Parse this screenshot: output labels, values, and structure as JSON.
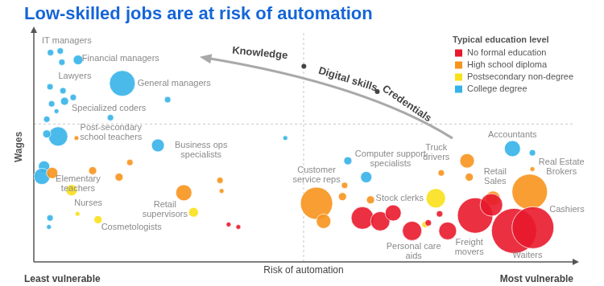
{
  "chart_data": {
    "type": "bubble",
    "title": "Low-skilled jobs are at risk of automation",
    "x_label": "Risk of automation",
    "y_label": "Wages",
    "x_left_label": "Least vulnerable",
    "x_right_label": "Most vulnerable",
    "legend_title": "Typical education level",
    "legend": "top-right",
    "grid": true,
    "tick_labels": false,
    "xlim": [
      0,
      100
    ],
    "ylim": [
      0,
      100
    ],
    "xticks": [
      50
    ],
    "yticks": [
      60
    ],
    "series": [
      {
        "name": "No formal education",
        "color": "#e8192c",
        "x": [
          36.1,
          37.9,
          60.9,
          64.2,
          66.6,
          70.1,
          73.1,
          75.2,
          76.7,
          81.8,
          84.8,
          89.0,
          92.5
        ],
        "y": [
          16.3,
          15.2,
          19.1,
          17.7,
          21.3,
          13.5,
          17.0,
          20.9,
          13.5,
          20.2,
          24.8,
          13.5,
          14.9
        ],
        "sizes": [
          3,
          3,
          14,
          12,
          10,
          12,
          4,
          4,
          11,
          22,
          14,
          28,
          26
        ]
      },
      {
        "name": "High school diploma",
        "color": "#f7941d",
        "x": [
          7.9,
          3.4,
          10.9,
          15.8,
          17.8,
          27.8,
          34.5,
          34.8,
          52.4,
          53.7,
          57.2,
          57.6,
          62.4,
          75.5,
          80.3,
          80.7,
          85.1,
          91.9,
          92.4
        ],
        "y": [
          53.9,
          38.7,
          39.7,
          36.9,
          43.3,
          30.1,
          35.5,
          30.9,
          25.5,
          17.7,
          28.4,
          33.3,
          27.0,
          38.7,
          44.0,
          36.9,
          27.7,
          30.5,
          40.4
        ],
        "sizes": [
          3,
          7,
          5,
          5,
          4,
          10,
          4,
          3,
          20,
          9,
          5,
          4,
          5,
          4,
          9,
          5,
          9,
          22,
          3
        ]
      },
      {
        "name": "Postsecondary non-degree",
        "color": "#f9e01b",
        "x": [
          7.0,
          8.1,
          11.9,
          29.6,
          74.5,
          72.5
        ],
        "y": [
          31.2,
          20.9,
          18.4,
          21.6,
          27.7,
          16.3
        ],
        "sizes": [
          7,
          3,
          5,
          6,
          12,
          4
        ]
      },
      {
        "name": "College degree",
        "color": "#35b3e8",
        "x": [
          3.1,
          4.9,
          5.2,
          8.2,
          3.0,
          16.4,
          5.4,
          3.3,
          5.7,
          4.2,
          7.3,
          24.8,
          2.4,
          14.2,
          4.5,
          2.4,
          23.0,
          46.6,
          1.9,
          1.5,
          3.0,
          2.8,
          58.2,
          61.6,
          88.7,
          92.4
        ],
        "y": [
          91.1,
          91.8,
          86.9,
          87.9,
          76.2,
          77.7,
          74.5,
          68.8,
          69.9,
          65.6,
          71.6,
          70.6,
          62.1,
          62.8,
          54.6,
          55.7,
          50.7,
          53.9,
          41.5,
          37.2,
          19.1,
          15.2,
          44.0,
          36.9,
          49.3,
          47.5
        ],
        "sizes": [
          4,
          4,
          4,
          6,
          4,
          16,
          4,
          4,
          5,
          3,
          4,
          4,
          4,
          4,
          12,
          5,
          8,
          3,
          7,
          10,
          4,
          3,
          5,
          7,
          10,
          4
        ]
      }
    ],
    "annotations": [
      {
        "text": "IT managers",
        "x": 6.1,
        "y": 96.1
      },
      {
        "text": "Financial managers",
        "x": 16.1,
        "y": 88.3
      },
      {
        "text": "Lawyers",
        "x": 7.6,
        "y": 80.9
      },
      {
        "text": "General managers",
        "x": 26.0,
        "y": 77.7
      },
      {
        "text": "Specialized coders",
        "x": 13.9,
        "y": 66.7
      },
      {
        "text": [
          "Post-secondary",
          "school teachers"
        ],
        "x": 14.3,
        "y": 56.4
      },
      {
        "text": [
          "Business ops",
          "specialists"
        ],
        "x": 31.0,
        "y": 48.6
      },
      {
        "text": [
          "Elementary",
          "teachers"
        ],
        "x": 8.2,
        "y": 34.0
      },
      {
        "text": "Nurses",
        "x": 10.1,
        "y": 25.5
      },
      {
        "text": "Cosmetologists",
        "x": 18.1,
        "y": 14.9
      },
      {
        "text": [
          "Retail",
          "supervisors"
        ],
        "x": 24.3,
        "y": 22.7
      },
      {
        "text": [
          "Customer",
          "service reps"
        ],
        "x": 52.4,
        "y": 37.6
      },
      {
        "text": [
          "Computer support",
          "specialists"
        ],
        "x": 66.1,
        "y": 44.7
      },
      {
        "text": "Stock clerks",
        "x": 67.8,
        "y": 27.7
      },
      {
        "text": [
          "Truck",
          "drivers"
        ],
        "x": 74.6,
        "y": 47.5
      },
      {
        "text": "Accountants",
        "x": 88.7,
        "y": 55.3
      },
      {
        "text": [
          "Retail",
          "Sales"
        ],
        "x": 85.5,
        "y": 36.9
      },
      {
        "text": [
          "Real Estate",
          "Brokers"
        ],
        "x": 97.8,
        "y": 41.1
      },
      {
        "text": "Cashiers",
        "x": 98.8,
        "y": 22.7
      },
      {
        "text": [
          "Personal care",
          "aids"
        ],
        "x": 70.4,
        "y": 4.6
      },
      {
        "text": [
          "Freight",
          "movers"
        ],
        "x": 80.7,
        "y": 6.4
      },
      {
        "text": "Waiters",
        "x": 91.5,
        "y": 2.8
      }
    ],
    "arrow_labels": [
      {
        "text": "Knowledge",
        "x": 41.9,
        "y": 90.8
      },
      {
        "text": "Digital skills",
        "x": 58.2,
        "y": 79.4
      },
      {
        "text": "Credentials",
        "x": 69.1,
        "y": 68.8
      }
    ]
  }
}
